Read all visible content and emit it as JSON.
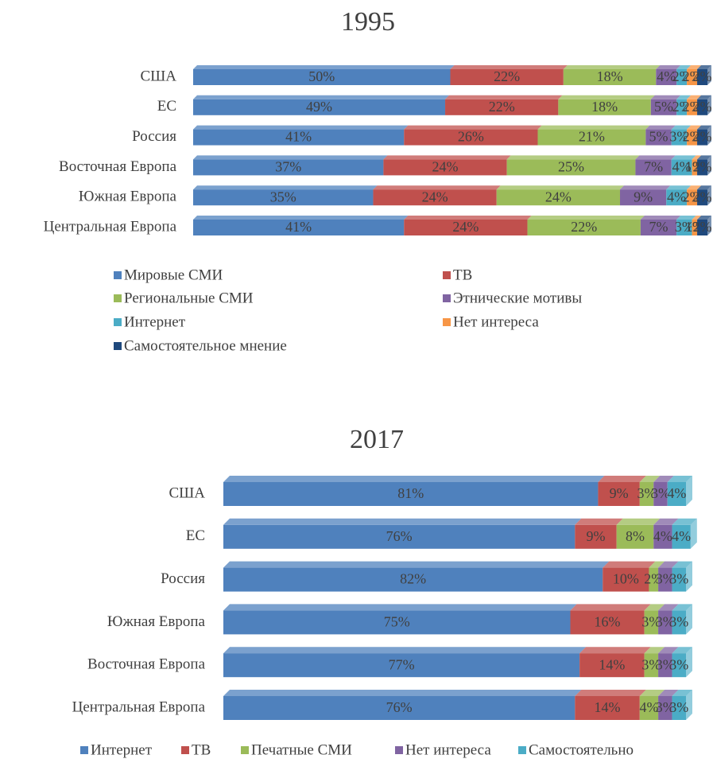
{
  "chart_data": [
    {
      "type": "bar",
      "orientation": "horizontal",
      "stacked": true,
      "title": "1995",
      "legend": "bottom",
      "categories": [
        "США",
        "ЕС",
        "Россия",
        "Восточная Европа",
        "Южная Европа",
        "Центральная Европа"
      ],
      "xlim": [
        0,
        100
      ],
      "series": [
        {
          "name": "Мировые СМИ",
          "color": "#4f81bd",
          "values": [
            50,
            49,
            41,
            37,
            35,
            41
          ],
          "value_labels": [
            "50%",
            "49%",
            "41%",
            "37%",
            "35%",
            "41%"
          ]
        },
        {
          "name": "ТВ",
          "color": "#c0504d",
          "values": [
            22,
            22,
            26,
            24,
            24,
            24
          ],
          "value_labels": [
            "22%",
            "22%",
            "26%",
            "24%",
            "24%",
            "24%"
          ]
        },
        {
          "name": "Региональные СМИ",
          "color": "#9bbb59",
          "values": [
            18,
            18,
            21,
            25,
            24,
            22
          ],
          "value_labels": [
            "18%",
            "18%",
            "21%",
            "25%",
            "24%",
            "22%"
          ]
        },
        {
          "name": "Этнические мотивы",
          "color": "#8064a2",
          "values": [
            4,
            5,
            5,
            7,
            9,
            7
          ],
          "value_labels": [
            "4%",
            "5%",
            "5%",
            "7%",
            "9%",
            "7%"
          ]
        },
        {
          "name": "Интернет",
          "color": "#4bacc6",
          "values": [
            2,
            2,
            3,
            4,
            4,
            3
          ],
          "value_labels": [
            "2%",
            "2%",
            "3%",
            "4%",
            "4%",
            "3%"
          ]
        },
        {
          "name": "Нет интереса",
          "color": "#f79646",
          "values": [
            2,
            2,
            2,
            1,
            2,
            1
          ],
          "value_labels": [
            "2%",
            "2%",
            "2%",
            "1%",
            "2%",
            "1%"
          ]
        },
        {
          "name": "Самостоятельное мнение",
          "color": "#1f497d",
          "values": [
            2,
            2,
            2,
            2,
            2,
            2
          ],
          "value_labels": [
            "2%",
            "2%",
            "2%",
            "2%",
            "2%",
            "2%"
          ]
        }
      ]
    },
    {
      "type": "bar",
      "orientation": "horizontal",
      "stacked": true,
      "title": "2017",
      "legend": "bottom",
      "categories": [
        "США",
        "ЕС",
        "Россия",
        "Южная Европа",
        "Восточная Европа",
        "Центральная Европа"
      ],
      "xlim": [
        0,
        100
      ],
      "series": [
        {
          "name": "Интернет",
          "color": "#4f81bd",
          "values": [
            81,
            76,
            82,
            75,
            77,
            76
          ],
          "value_labels": [
            "81%",
            "76%",
            "82%",
            "75%",
            "77%",
            "76%"
          ]
        },
        {
          "name": "ТВ",
          "color": "#c0504d",
          "values": [
            9,
            9,
            10,
            16,
            14,
            14
          ],
          "value_labels": [
            "9%",
            "9%",
            "10%",
            "16%",
            "14%",
            "14%"
          ]
        },
        {
          "name": "Печатные СМИ",
          "color": "#9bbb59",
          "values": [
            3,
            8,
            2,
            3,
            3,
            4
          ],
          "value_labels": [
            "3%",
            "8%",
            "2%",
            "3%",
            "3%",
            "4%"
          ]
        },
        {
          "name": "Нет интереса",
          "color": "#8064a2",
          "values": [
            3,
            4,
            3,
            3,
            3,
            3
          ],
          "value_labels": [
            "3%",
            "4%",
            "3%",
            "3%",
            "3%",
            "3%"
          ]
        },
        {
          "name": "Самостоятельно",
          "color": "#4bacc6",
          "values": [
            4,
            4,
            3,
            3,
            3,
            3
          ],
          "value_labels": [
            "4%",
            "4%",
            "3%",
            "3%",
            "3%",
            "3%"
          ]
        }
      ]
    }
  ]
}
